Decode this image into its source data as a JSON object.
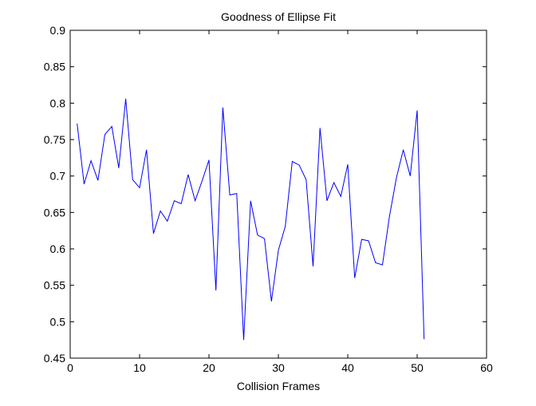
{
  "chart_data": {
    "type": "line",
    "title": "Goodness of Ellipse Fit",
    "xlabel": "Collision Frames",
    "ylabel": "",
    "xlim": [
      0,
      60
    ],
    "ylim": [
      0.45,
      0.9
    ],
    "xticks": [
      0,
      10,
      20,
      30,
      40,
      50,
      60
    ],
    "xtick_labels": [
      "0",
      "10",
      "20",
      "30",
      "40",
      "50",
      "60"
    ],
    "yticks": [
      0.45,
      0.5,
      0.55,
      0.6,
      0.65,
      0.7,
      0.75,
      0.8,
      0.85,
      0.9
    ],
    "ytick_labels": [
      "0.45",
      "0.5",
      "0.55",
      "0.6",
      "0.65",
      "0.7",
      "0.75",
      "0.8",
      "0.85",
      "0.9"
    ],
    "grid": false,
    "legend": "none",
    "series": [
      {
        "color": "#0000ff",
        "x": [
          1,
          2,
          3,
          4,
          5,
          6,
          7,
          8,
          9,
          10,
          11,
          12,
          13,
          14,
          15,
          16,
          17,
          18,
          19,
          20,
          21,
          22,
          23,
          24,
          25,
          26,
          27,
          28,
          29,
          30,
          31,
          32,
          33,
          34,
          35,
          36,
          37,
          38,
          39,
          40,
          41,
          42,
          43,
          44,
          45,
          46,
          47,
          48,
          49,
          50,
          51
        ],
        "values": [
          0.772,
          0.689,
          0.721,
          0.694,
          0.757,
          0.768,
          0.711,
          0.806,
          0.695,
          0.684,
          0.736,
          0.621,
          0.652,
          0.638,
          0.666,
          0.662,
          0.702,
          0.666,
          0.693,
          0.722,
          0.543,
          0.794,
          0.674,
          0.676,
          0.475,
          0.666,
          0.619,
          0.614,
          0.528,
          0.598,
          0.631,
          0.72,
          0.715,
          0.695,
          0.576,
          0.766,
          0.666,
          0.691,
          0.672,
          0.716,
          0.56,
          0.613,
          0.611,
          0.581,
          0.578,
          0.644,
          0.697,
          0.736,
          0.7,
          0.79,
          0.476
        ]
      }
    ]
  }
}
